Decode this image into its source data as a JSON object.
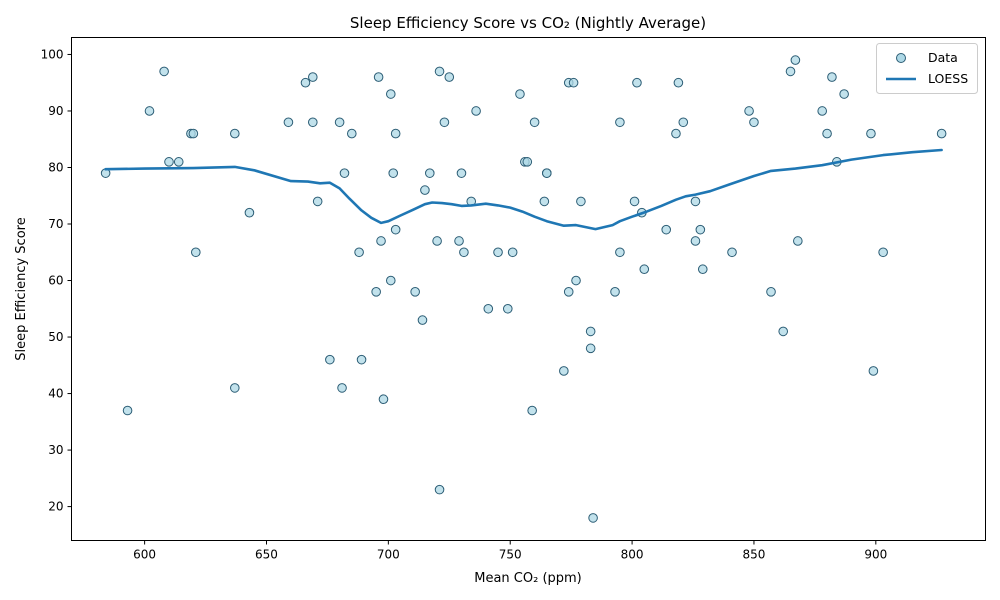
{
  "chart_data": {
    "type": "scatter",
    "title": "Sleep Efficiency Score vs CO₂ (Nightly Average)",
    "xlabel": "Mean CO₂ (ppm)",
    "ylabel": "Sleep Efficiency Score",
    "xlim": [
      570,
      945
    ],
    "ylim": [
      14,
      103
    ],
    "xticks": [
      600,
      650,
      700,
      750,
      800,
      850,
      900
    ],
    "yticks": [
      20,
      30,
      40,
      50,
      60,
      70,
      80,
      90,
      100
    ],
    "grid": false,
    "legend": {
      "position": "top-right",
      "entries": [
        "Data",
        "LOESS"
      ]
    },
    "colors": {
      "scatter_fill": "#add8e6",
      "scatter_edge": "#2c5d75",
      "loess": "#1f77b4"
    },
    "series": [
      {
        "name": "Data",
        "kind": "scatter",
        "points": [
          [
            584,
            79
          ],
          [
            593,
            37
          ],
          [
            602,
            90
          ],
          [
            608,
            97
          ],
          [
            610,
            81
          ],
          [
            614,
            81
          ],
          [
            619,
            86
          ],
          [
            620,
            86
          ],
          [
            621,
            65
          ],
          [
            637,
            86
          ],
          [
            637,
            41
          ],
          [
            643,
            72
          ],
          [
            659,
            88
          ],
          [
            666,
            95
          ],
          [
            669,
            96
          ],
          [
            669,
            88
          ],
          [
            671,
            74
          ],
          [
            676,
            46
          ],
          [
            680,
            88
          ],
          [
            681,
            41
          ],
          [
            682,
            79
          ],
          [
            685,
            86
          ],
          [
            688,
            65
          ],
          [
            689,
            46
          ],
          [
            695,
            58
          ],
          [
            696,
            96
          ],
          [
            697,
            67
          ],
          [
            698,
            39
          ],
          [
            701,
            60
          ],
          [
            701,
            93
          ],
          [
            702,
            79
          ],
          [
            703,
            69
          ],
          [
            703,
            86
          ],
          [
            711,
            58
          ],
          [
            714,
            53
          ],
          [
            715,
            76
          ],
          [
            717,
            79
          ],
          [
            720,
            67
          ],
          [
            721,
            23
          ],
          [
            721,
            97
          ],
          [
            723,
            88
          ],
          [
            725,
            96
          ],
          [
            729,
            67
          ],
          [
            730,
            79
          ],
          [
            731,
            65
          ],
          [
            734,
            74
          ],
          [
            736,
            90
          ],
          [
            741,
            55
          ],
          [
            745,
            65
          ],
          [
            749,
            55
          ],
          [
            751,
            65
          ],
          [
            754,
            93
          ],
          [
            756,
            81
          ],
          [
            757,
            81
          ],
          [
            759,
            37
          ],
          [
            760,
            88
          ],
          [
            764,
            74
          ],
          [
            765,
            79
          ],
          [
            765,
            79
          ],
          [
            772,
            44
          ],
          [
            774,
            95
          ],
          [
            774,
            58
          ],
          [
            776,
            95
          ],
          [
            777,
            60
          ],
          [
            779,
            74
          ],
          [
            783,
            51
          ],
          [
            783,
            48
          ],
          [
            784,
            18
          ],
          [
            793,
            58
          ],
          [
            795,
            65
          ],
          [
            795,
            88
          ],
          [
            801,
            74
          ],
          [
            802,
            95
          ],
          [
            804,
            72
          ],
          [
            805,
            62
          ],
          [
            814,
            69
          ],
          [
            818,
            86
          ],
          [
            819,
            95
          ],
          [
            821,
            88
          ],
          [
            826,
            74
          ],
          [
            826,
            67
          ],
          [
            828,
            69
          ],
          [
            829,
            62
          ],
          [
            841,
            65
          ],
          [
            848,
            90
          ],
          [
            850,
            88
          ],
          [
            857,
            58
          ],
          [
            862,
            51
          ],
          [
            865,
            97
          ],
          [
            867,
            99
          ],
          [
            868,
            67
          ],
          [
            878,
            90
          ],
          [
            880,
            86
          ],
          [
            882,
            96
          ],
          [
            884,
            81
          ],
          [
            887,
            93
          ],
          [
            898,
            86
          ],
          [
            899,
            44
          ],
          [
            903,
            65
          ],
          [
            927,
            86
          ]
        ]
      },
      {
        "name": "LOESS",
        "kind": "line",
        "points": [
          [
            584,
            79.7
          ],
          [
            600,
            79.8
          ],
          [
            620,
            79.9
          ],
          [
            637,
            80.1
          ],
          [
            645,
            79.5
          ],
          [
            660,
            77.6
          ],
          [
            667,
            77.5
          ],
          [
            672,
            77.2
          ],
          [
            676,
            77.3
          ],
          [
            680,
            76.3
          ],
          [
            684,
            74.5
          ],
          [
            689,
            72.4
          ],
          [
            693,
            71.1
          ],
          [
            697,
            70.2
          ],
          [
            700,
            70.5
          ],
          [
            705,
            71.5
          ],
          [
            710,
            72.5
          ],
          [
            715,
            73.5
          ],
          [
            718,
            73.8
          ],
          [
            722,
            73.7
          ],
          [
            726,
            73.5
          ],
          [
            730,
            73.2
          ],
          [
            734,
            73.3
          ],
          [
            740,
            73.6
          ],
          [
            745,
            73.3
          ],
          [
            750,
            72.9
          ],
          [
            755,
            72.2
          ],
          [
            760,
            71.3
          ],
          [
            765,
            70.5
          ],
          [
            772,
            69.7
          ],
          [
            777,
            69.8
          ],
          [
            785,
            69.1
          ],
          [
            792,
            69.8
          ],
          [
            795,
            70.5
          ],
          [
            800,
            71.3
          ],
          [
            806,
            72.2
          ],
          [
            812,
            73.2
          ],
          [
            818,
            74.3
          ],
          [
            822,
            74.9
          ],
          [
            826,
            75.2
          ],
          [
            832,
            75.8
          ],
          [
            840,
            77.0
          ],
          [
            850,
            78.5
          ],
          [
            857,
            79.4
          ],
          [
            867,
            79.8
          ],
          [
            878,
            80.4
          ],
          [
            890,
            81.4
          ],
          [
            903,
            82.2
          ],
          [
            915,
            82.7
          ],
          [
            927,
            83.1
          ]
        ]
      }
    ]
  }
}
